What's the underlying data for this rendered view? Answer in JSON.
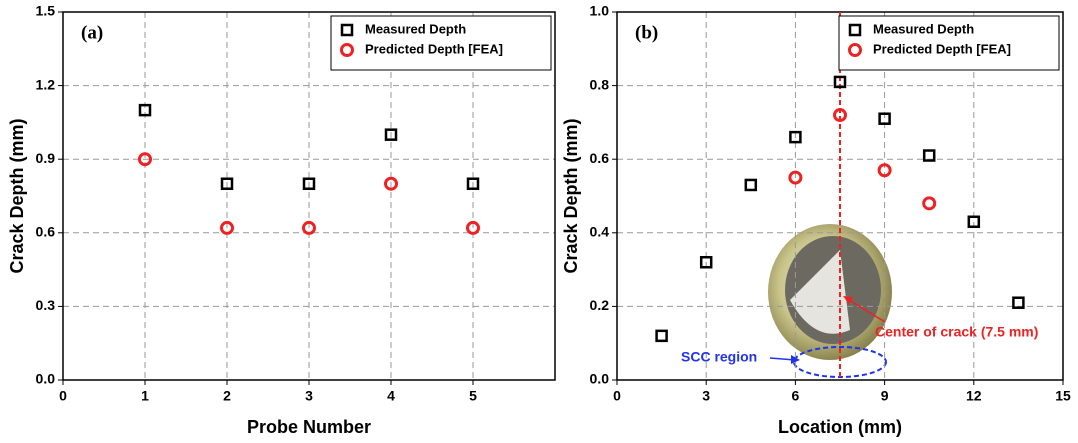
{
  "chart_data": [
    {
      "type": "scatter",
      "panel_label": "(a)",
      "x_label": "Probe Number",
      "y_label": "Crack Depth (mm)",
      "xlim": [
        0,
        6
      ],
      "xticks": [
        0,
        1,
        2,
        3,
        4,
        5
      ],
      "ylim": [
        0,
        1.5
      ],
      "yticks": [
        {
          "value": 0,
          "label": "0.0"
        },
        0.3,
        0.6,
        0.9,
        1.2,
        1.5
      ],
      "grid": true,
      "legend": "upper right",
      "series": [
        {
          "name": "Measured Depth",
          "color": "#000000",
          "marker": "square",
          "x": [
            1,
            2,
            3,
            4,
            5
          ],
          "values": [
            1.1,
            0.8,
            0.8,
            1.0,
            0.8
          ]
        },
        {
          "name": "Predicted Depth [FEA]",
          "color": "#ee2222",
          "marker": "circle",
          "x": [
            1,
            2,
            3,
            4,
            5
          ],
          "values": [
            0.9,
            0.62,
            0.62,
            0.8,
            0.62
          ]
        }
      ]
    },
    {
      "type": "scatter",
      "panel_label": "(b)",
      "x_label": "Location (mm)",
      "y_label": "Crack Depth (mm)",
      "xlim": [
        0,
        15
      ],
      "xticks": [
        0,
        3,
        6,
        9,
        12,
        15
      ],
      "ylim": [
        0,
        1.0
      ],
      "yticks": [
        {
          "value": 0,
          "label": "0.0"
        },
        0.2,
        0.4,
        0.6,
        0.8,
        {
          "value": 1.0,
          "label": "1.0"
        }
      ],
      "grid": true,
      "legend": "upper right",
      "vline": 7.5,
      "annotations": [
        "Center of crack (7.5 mm)",
        "SCC region"
      ],
      "series": [
        {
          "name": "Measured Depth",
          "color": "#000000",
          "marker": "square",
          "x": [
            1.5,
            3,
            4.5,
            6,
            7.5,
            9,
            10.5,
            12,
            13.5
          ],
          "values": [
            0.12,
            0.32,
            0.53,
            0.66,
            0.81,
            0.71,
            0.61,
            0.43,
            0.21
          ]
        },
        {
          "name": "Predicted Depth [FEA]",
          "color": "#ee2222",
          "marker": "circle",
          "x": [
            6,
            7.5,
            9,
            10.5
          ],
          "values": [
            0.55,
            0.72,
            0.57,
            0.48
          ]
        }
      ]
    }
  ]
}
